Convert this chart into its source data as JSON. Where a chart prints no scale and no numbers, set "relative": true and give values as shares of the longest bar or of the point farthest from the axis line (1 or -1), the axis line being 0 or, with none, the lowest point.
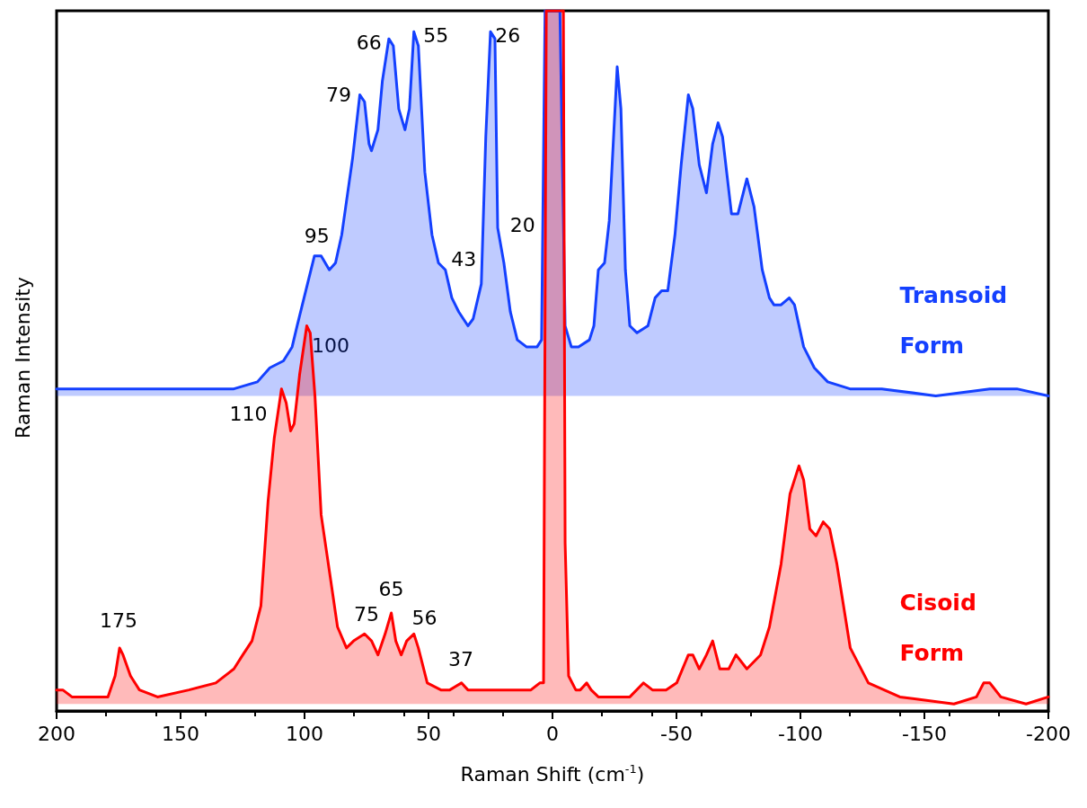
{
  "chart_data": {
    "type": "area",
    "relative": true,
    "xlabel": "Raman Shift (cm$^{-1}$)",
    "ylabel": "Raman Intensity",
    "xlim": [
      200,
      -200
    ],
    "xticks": [
      200,
      150,
      100,
      50,
      0,
      -50,
      -100,
      -150,
      -200
    ],
    "grid": false,
    "legend": false,
    "marker": "none",
    "line_style": "solid",
    "series": [
      {
        "name": "Transoid Form",
        "color": "#1440ff",
        "x": [
          200,
          186.6,
          175.7,
          157.5,
          139.4,
          128.5,
          119,
          114,
          108.5,
          105,
          103,
          99.5,
          96,
          93.3,
          90,
          87.5,
          85,
          80.6,
          77.7,
          75.8,
          74,
          73,
          70.4,
          68.6,
          66,
          64.2,
          62,
          59.5,
          57.7,
          55.9,
          54.1,
          51.5,
          48.6,
          46,
          43.2,
          40.6,
          37.8,
          34.1,
          32,
          28.7,
          26.9,
          25,
          23.2,
          22.1,
          19.6,
          17,
          14.2,
          10.5,
          6.2,
          4.4,
          3,
          -3,
          -5.1,
          -7.6,
          -10.5,
          -14.9,
          -16.7,
          -18.5,
          -21,
          -22.9,
          -26.1,
          -27.6,
          -29.4,
          -31.2,
          -34.1,
          -38.5,
          -41.4,
          -44,
          -46.5,
          -49.4,
          -51.9,
          -54.8,
          -56.6,
          -59.2,
          -62.1,
          -64.6,
          -66.8,
          -68.6,
          -72.2,
          -74.8,
          -78.4,
          -81.3,
          -84.6,
          -87.5,
          -89.3,
          -92.2,
          -95.5,
          -97.6,
          -101.3,
          -105.6,
          -111,
          -120,
          -132.8,
          -154.6,
          -176.4,
          -187.3,
          -200
        ],
        "values": [
          0.46,
          0.46,
          0.46,
          0.46,
          0.46,
          0.46,
          0.47,
          0.49,
          0.5,
          0.52,
          0.55,
          0.6,
          0.65,
          0.65,
          0.63,
          0.64,
          0.68,
          0.79,
          0.88,
          0.87,
          0.81,
          0.8,
          0.83,
          0.9,
          0.96,
          0.95,
          0.86,
          0.83,
          0.86,
          0.97,
          0.95,
          0.77,
          0.68,
          0.64,
          0.63,
          0.59,
          0.57,
          0.55,
          0.56,
          0.61,
          0.82,
          0.97,
          0.96,
          0.69,
          0.64,
          0.57,
          0.53,
          0.52,
          0.52,
          0.53,
          1,
          1,
          0.55,
          0.52,
          0.52,
          0.53,
          0.55,
          0.63,
          0.64,
          0.7,
          0.92,
          0.86,
          0.63,
          0.55,
          0.54,
          0.55,
          0.59,
          0.6,
          0.6,
          0.68,
          0.78,
          0.88,
          0.86,
          0.78,
          0.74,
          0.81,
          0.84,
          0.82,
          0.71,
          0.71,
          0.76,
          0.72,
          0.63,
          0.59,
          0.58,
          0.58,
          0.59,
          0.58,
          0.52,
          0.49,
          0.47,
          0.46,
          0.46,
          0.45,
          0.46,
          0.46,
          0.45
        ]
      },
      {
        "name": "Cisoid Form",
        "color": "#ff0000",
        "x": [
          200,
          197.5,
          193.8,
          186.6,
          179.3,
          176.4,
          174.6,
          173.2,
          170.2,
          166.6,
          159.3,
          146.6,
          135.8,
          128.5,
          124.9,
          121.2,
          117.6,
          114.7,
          112.2,
          109.3,
          107.4,
          105.6,
          104.2,
          102,
          99.1,
          97.7,
          95.8,
          93.3,
          90.4,
          86.7,
          83.1,
          80.2,
          75.8,
          72.96,
          70.4,
          67.5,
          65,
          63.2,
          61,
          58.8,
          55.9,
          54.1,
          50.5,
          45,
          41.4,
          36.7,
          34.1,
          28.7,
          19.6,
          8.7,
          5.1,
          3.6,
          2.5,
          -4.4,
          -5.1,
          -6.5,
          -9.4,
          -11.2,
          -13.8,
          -15.6,
          -18.5,
          -27.6,
          -31.2,
          -36.7,
          -40.3,
          -45.8,
          -50.1,
          -54.8,
          -56.6,
          -59.2,
          -62.1,
          -64.6,
          -67.5,
          -71.1,
          -74,
          -78.4,
          -83.9,
          -87.5,
          -92.2,
          -95.8,
          -99.4,
          -101.3,
          -103.8,
          -106.3,
          -109.2,
          -111.8,
          -114.7,
          -120.1,
          -127.4,
          -140.1,
          -161.9,
          -171,
          -173.9,
          -176.4,
          -180.8,
          -191,
          -200
        ],
        "values": [
          0.03,
          0.03,
          0.02,
          0.02,
          0.02,
          0.05,
          0.09,
          0.08,
          0.05,
          0.03,
          0.02,
          0.03,
          0.04,
          0.06,
          0.08,
          0.1,
          0.15,
          0.3,
          0.39,
          0.46,
          0.44,
          0.4,
          0.41,
          0.48,
          0.55,
          0.54,
          0.45,
          0.28,
          0.21,
          0.12,
          0.09,
          0.1,
          0.11,
          0.1,
          0.08,
          0.11,
          0.14,
          0.1,
          0.08,
          0.1,
          0.11,
          0.09,
          0.04,
          0.03,
          0.03,
          0.04,
          0.03,
          0.03,
          0.03,
          0.03,
          0.04,
          0.04,
          1,
          1,
          0.24,
          0.05,
          0.03,
          0.03,
          0.04,
          0.03,
          0.02,
          0.02,
          0.02,
          0.04,
          0.03,
          0.03,
          0.04,
          0.08,
          0.08,
          0.06,
          0.08,
          0.1,
          0.06,
          0.06,
          0.08,
          0.06,
          0.08,
          0.12,
          0.21,
          0.31,
          0.35,
          0.33,
          0.26,
          0.25,
          0.27,
          0.26,
          0.21,
          0.09,
          0.04,
          0.02,
          0.01,
          0.02,
          0.04,
          0.04,
          0.02,
          0.01,
          0.02
        ]
      }
    ],
    "annotations": [
      {
        "text": "95",
        "x": 95,
        "y": 0.65
      },
      {
        "text": "79",
        "x": 79,
        "y": 0.88
      },
      {
        "text": "66",
        "x": 66,
        "y": 0.96
      },
      {
        "text": "55",
        "x": 55,
        "y": 0.97
      },
      {
        "text": "43",
        "x": 43,
        "y": 0.63
      },
      {
        "text": "26",
        "x": 26,
        "y": 0.97
      },
      {
        "text": "20",
        "x": 20,
        "y": 0.64
      },
      {
        "text": "100",
        "x": 100,
        "y": 0.55
      },
      {
        "text": "110",
        "x": 110,
        "y": 0.46
      },
      {
        "text": "175",
        "x": 175,
        "y": 0.09
      },
      {
        "text": "75",
        "x": 75,
        "y": 0.11
      },
      {
        "text": "65",
        "x": 65,
        "y": 0.14
      },
      {
        "text": "56",
        "x": 56,
        "y": 0.11
      },
      {
        "text": "37",
        "x": 37,
        "y": 0.04
      }
    ]
  }
}
